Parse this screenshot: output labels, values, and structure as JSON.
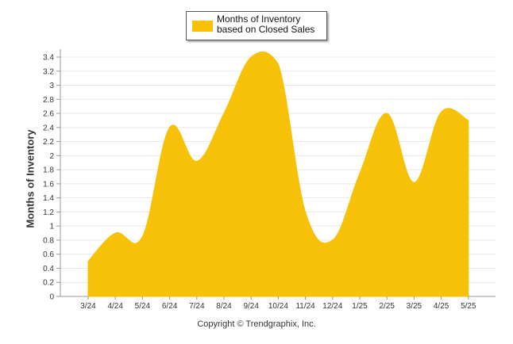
{
  "chart_data": {
    "type": "area",
    "categories": [
      "3/24",
      "4/24",
      "5/24",
      "6/24",
      "7/24",
      "8/24",
      "9/24",
      "10/24",
      "11/24",
      "12/24",
      "1/25",
      "2/25",
      "3/25",
      "4/25",
      "5/25"
    ],
    "series": [
      {
        "name": "Months of Inventory based on Closed Sales",
        "values": [
          0.5,
          0.9,
          0.85,
          2.4,
          1.92,
          2.6,
          3.4,
          3.3,
          1.2,
          0.8,
          1.75,
          2.6,
          1.62,
          2.62,
          2.5
        ]
      }
    ],
    "ylabel": "Months of Inventory",
    "xlabel": "",
    "ylim": [
      0,
      3.4
    ],
    "yticks": [
      "0",
      "0.2",
      "0.4",
      "0.6",
      "0.8",
      "1",
      "1.2",
      "1.4",
      "1.6",
      "1.8",
      "2",
      "2.2",
      "2.4",
      "2.6",
      "2.8",
      "3",
      "3.2",
      "3.4"
    ],
    "grid": true,
    "legend_position": "top-center",
    "color": "#f7c107"
  },
  "footer": "Copyright © Trendgraphix, Inc."
}
